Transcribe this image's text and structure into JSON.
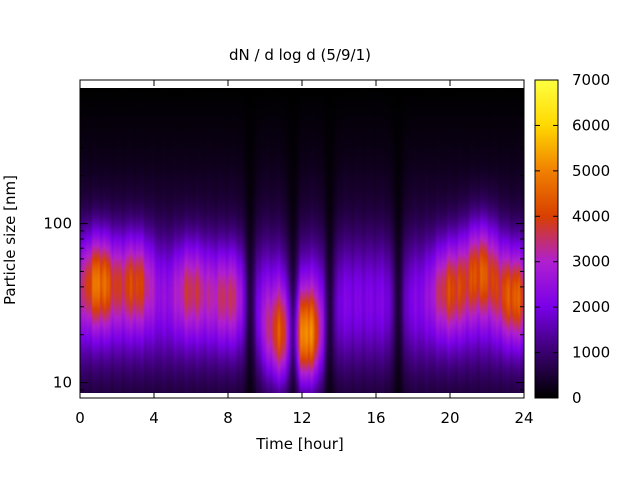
{
  "chart_data": {
    "type": "heatmap",
    "title": "dN / d log d (5/9/1)",
    "xlabel": "Time [hour]",
    "ylabel": "Particle size [nm]",
    "x_range": [
      0,
      24
    ],
    "y_range_nm": [
      8,
      800
    ],
    "y_scale": "log",
    "x_ticks": [
      0,
      4,
      8,
      12,
      16,
      20,
      24
    ],
    "y_ticks": [
      10,
      100
    ],
    "colorbar": {
      "range": [
        0,
        7000
      ],
      "ticks": [
        0,
        1000,
        2000,
        3000,
        4000,
        5000,
        6000,
        7000
      ],
      "colormap": [
        "#000000",
        "#3a0070",
        "#7a00e8",
        "#b020d0",
        "#d84000",
        "#f08000",
        "#ffd800",
        "#ffff40"
      ]
    },
    "features": [
      {
        "time": 1.0,
        "size_nm": 45,
        "value": 5000
      },
      {
        "time": 3.0,
        "size_nm": 45,
        "value": 4200
      },
      {
        "time": 6.0,
        "size_nm": 40,
        "value": 3600
      },
      {
        "time": 8.0,
        "size_nm": 35,
        "value": 3400
      },
      {
        "time": 10.8,
        "size_nm": 18,
        "value": 4200
      },
      {
        "time": 12.2,
        "size_nm": 18,
        "value": 5600
      },
      {
        "time": 20.0,
        "size_nm": 40,
        "value": 4000
      },
      {
        "time": 21.7,
        "size_nm": 55,
        "value": 4600
      },
      {
        "time": 23.5,
        "size_nm": 35,
        "value": 4400
      }
    ],
    "grid": false
  }
}
